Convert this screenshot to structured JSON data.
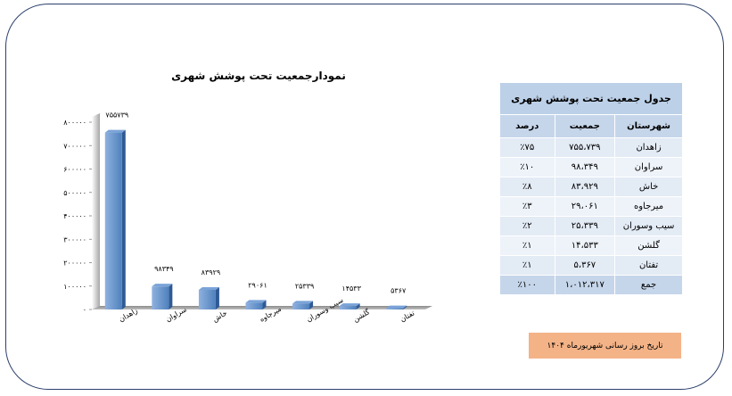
{
  "chart_data": {
    "type": "bar",
    "title": "نمودارجمعیت تحت پوشش شهری",
    "categories": [
      "زاهدان",
      "سراوان",
      "خاش",
      "میرجاوه",
      "سیب وسوران",
      "گلشن",
      "تفتان"
    ],
    "values": [
      755739,
      98349,
      83929,
      29061,
      25339,
      14533,
      5367
    ],
    "value_labels": [
      "۷۵۵۷۳۹",
      "۹۸۳۴۹",
      "۸۳۹۲۹",
      "۲۹۰۶۱",
      "۲۵۳۳۹",
      "۱۴۵۳۳",
      "۵۳۶۷"
    ],
    "ylim": [
      0,
      800000
    ],
    "yticks": [
      0,
      100000,
      200000,
      300000,
      400000,
      500000,
      600000,
      700000,
      800000
    ],
    "ytick_labels": [
      "۰",
      "۱۰۰۰۰۰",
      "۲۰۰۰۰۰",
      "۳۰۰۰۰۰",
      "۴۰۰۰۰۰",
      "۵۰۰۰۰۰",
      "۶۰۰۰۰۰",
      "۷۰۰۰۰۰",
      "۸۰۰۰۰۰"
    ],
    "grid": false,
    "bar_color": "#4f81bd",
    "bar_color_light": "#8fb1df"
  },
  "table": {
    "title": "جدول جمعیت تحت پوشش شهری",
    "headers": [
      "شهرستان",
      "جمعیت",
      "درصد"
    ],
    "rows": [
      [
        "زاهدان",
        "۷۵۵،۷۳۹",
        "٪۷۵"
      ],
      [
        "سراوان",
        "۹۸،۳۴۹",
        "٪۱۰"
      ],
      [
        "خاش",
        "۸۳،۹۲۹",
        "٪۸"
      ],
      [
        "میرجاوه",
        "۲۹،۰۶۱",
        "٪۳"
      ],
      [
        "سیب وسوران",
        "۲۵،۳۳۹",
        "٪۲"
      ],
      [
        "گلشن",
        "۱۴،۵۳۳",
        "٪۱"
      ],
      [
        "تفتان",
        "۵،۳۶۷",
        "٪۱"
      ]
    ],
    "total": [
      "جمع",
      "۱،۰۱۲،۳۱۷",
      "٪۱۰۰"
    ]
  },
  "update_note": "تاریخ بروز رسانی شهریورماه ۱۴۰۴"
}
